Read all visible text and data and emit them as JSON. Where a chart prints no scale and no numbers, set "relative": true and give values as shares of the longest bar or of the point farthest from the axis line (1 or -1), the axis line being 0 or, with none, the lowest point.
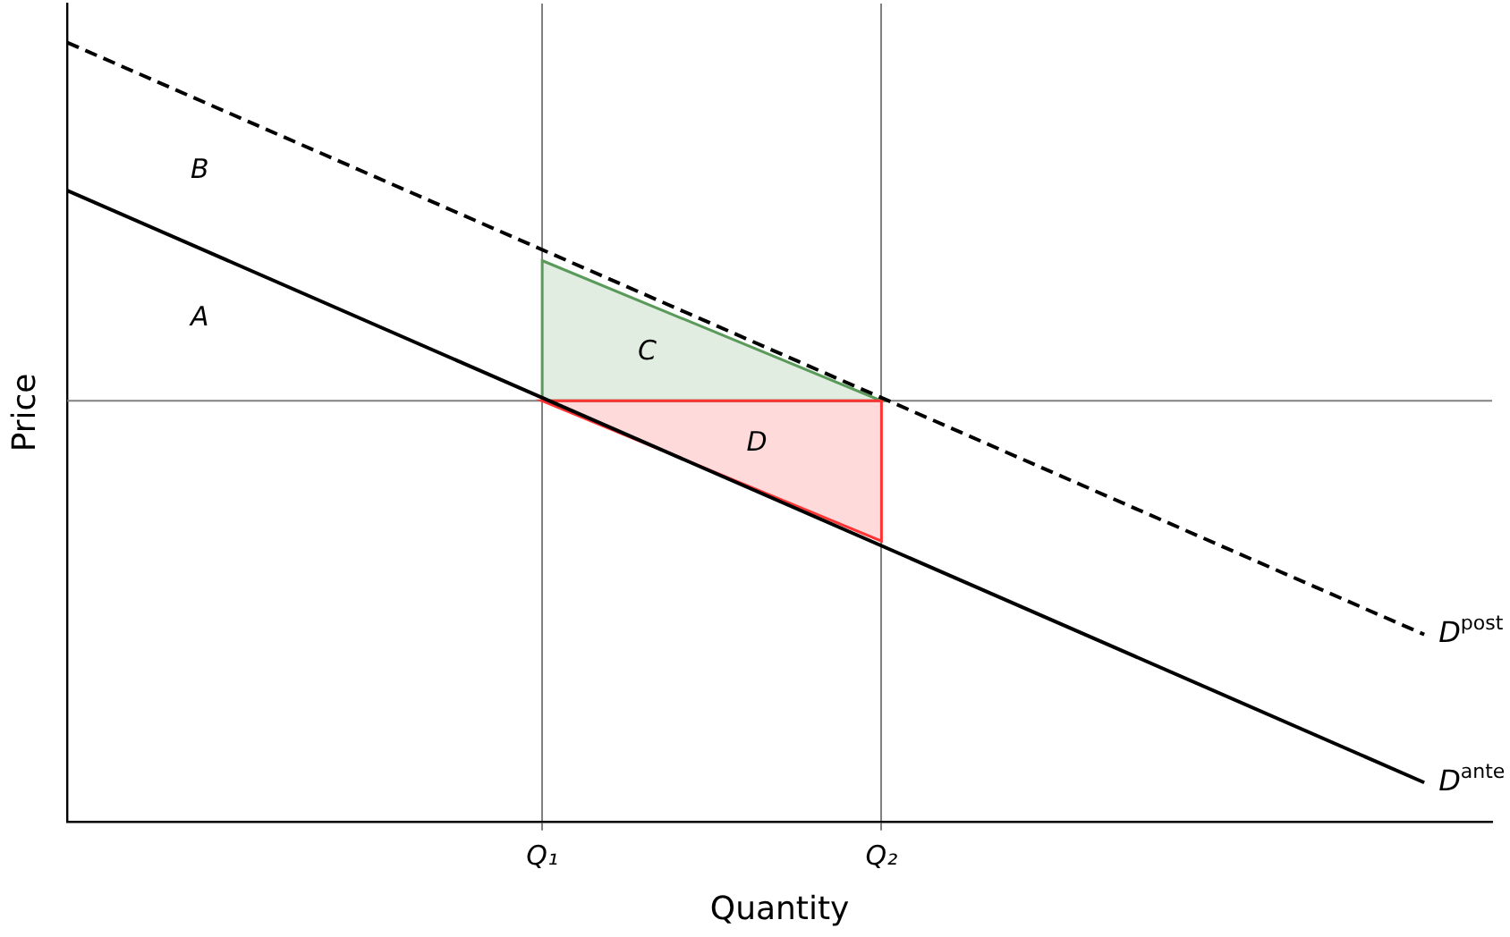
{
  "chart_data": {
    "type": "line",
    "relative": true,
    "xlabel": "Quantity",
    "ylabel": "Price",
    "categories": [
      null,
      null,
      null,
      null,
      null,
      null,
      null,
      "Q₁",
      null,
      null,
      null,
      null,
      "Q₂",
      null,
      null,
      null,
      null,
      null,
      null,
      null,
      null,
      null
    ],
    "tick_labels": "x",
    "grid": "x",
    "legend": false,
    "marker": "none",
    "series": [
      {
        "name": "D$^{ante}$",
        "color": "#000000",
        "line_style": "solid",
        "values": [
          0.81,
          null,
          null,
          null,
          null,
          null,
          null,
          null,
          null,
          null,
          null,
          null,
          null,
          null,
          null,
          null,
          null,
          null,
          null,
          null,
          0.05,
          null
        ]
      },
      {
        "name": "D$^{post}$",
        "color": "#000000",
        "line_style": "dashed",
        "values": [
          1,
          null,
          null,
          null,
          null,
          null,
          null,
          null,
          null,
          null,
          null,
          null,
          null,
          null,
          null,
          null,
          null,
          null,
          null,
          null,
          0.24,
          null
        ]
      },
      {
        "type": "area",
        "color": "#5a9a5a",
        "values": [
          null,
          null,
          null,
          null,
          null,
          null,
          null,
          0.72,
          null,
          null,
          null,
          null,
          0.54,
          null,
          null,
          null,
          null,
          null,
          null,
          null,
          null,
          null
        ]
      },
      {
        "type": "area",
        "color": "#ff3333",
        "values": [
          null,
          null,
          null,
          null,
          null,
          null,
          null,
          0.54,
          null,
          null,
          null,
          null,
          0.36,
          null,
          null,
          null,
          null,
          null,
          null,
          null,
          null,
          null
        ]
      }
    ],
    "ref_lines": [
      {
        "axis": "y",
        "value": 0.54,
        "color": "#808080"
      }
    ],
    "annotations": [
      "A",
      "B",
      "C",
      "D"
    ]
  }
}
